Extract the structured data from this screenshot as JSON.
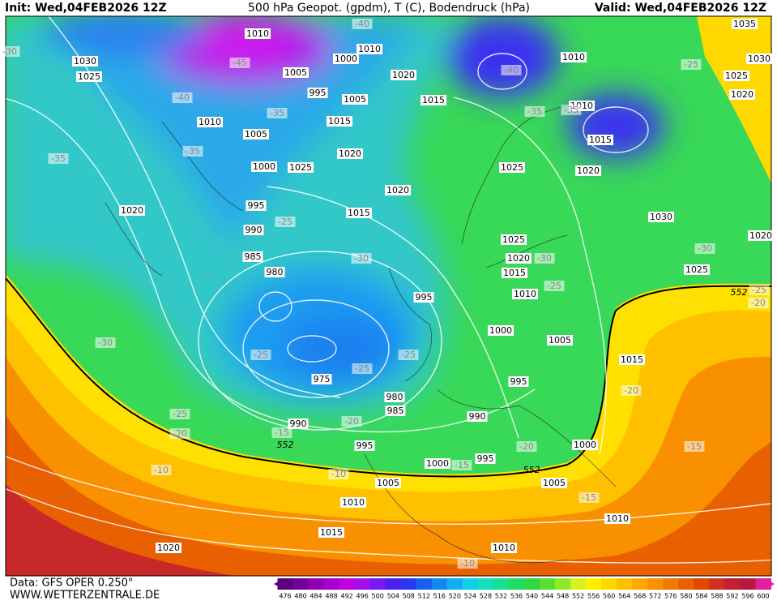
{
  "header": {
    "init": "Init: Wed,04FEB2026 12Z",
    "title": "500 hPa Geopot. (gpdm), T (C), Bodendruck (hPa)",
    "valid": "Valid: Wed,04FEB2026 12Z"
  },
  "footer": {
    "source": "Data: GFS OPER 0.250°",
    "site": "WWW.WETTERZENTRALE.DE"
  },
  "colorbar": {
    "labels": [
      476,
      480,
      484,
      488,
      492,
      496,
      500,
      504,
      508,
      512,
      516,
      520,
      524,
      528,
      532,
      536,
      540,
      544,
      548,
      552,
      556,
      560,
      564,
      568,
      572,
      576,
      580,
      584,
      588,
      592,
      596,
      600
    ],
    "colors": [
      "#5a0080",
      "#74009a",
      "#9000b4",
      "#a800cc",
      "#c000e0",
      "#a010ee",
      "#7a18f0",
      "#4c20f0",
      "#2a38f0",
      "#1a60f0",
      "#1288f0",
      "#10b0f0",
      "#10d0e8",
      "#10e0c0",
      "#18e090",
      "#20dc60",
      "#30d840",
      "#58e030",
      "#90e828",
      "#d8f020",
      "#fff000",
      "#ffd800",
      "#ffc000",
      "#ffa800",
      "#f89000",
      "#f07800",
      "#e86000",
      "#e04800",
      "#d03020",
      "#c02030",
      "#b81840",
      "#e020a0"
    ]
  },
  "map": {
    "isobar_labels": [
      1010,
      1010,
      1000,
      1030,
      1025,
      1005,
      995,
      1005,
      1020,
      1015,
      1010,
      1010,
      1015,
      1010,
      1005,
      1015,
      1020,
      1000,
      1025,
      1025,
      1020,
      1020,
      995,
      1015,
      1020,
      990,
      1030,
      1025,
      1020,
      985,
      980,
      1015,
      1010,
      995,
      1000,
      1005,
      1015,
      975,
      995,
      980,
      985,
      990,
      990,
      995,
      1000,
      1000,
      995,
      1005,
      1005,
      1010,
      1010,
      1015,
      1010,
      1020,
      1035,
      1030,
      1025,
      1020,
      1020,
      1025
    ],
    "temperature_labels": [
      -40,
      -45,
      -40,
      -35,
      -35,
      -35,
      -40,
      -35,
      -35,
      -25,
      -25,
      -30,
      -30,
      -25,
      -30,
      -25,
      -20,
      -25,
      -25,
      -25,
      -30,
      -25,
      -20,
      -15,
      -20,
      -20,
      -15,
      -20,
      -15,
      -10,
      -10,
      -15,
      -10,
      -30
    ],
    "geopotential_labels": [
      552,
      552,
      552
    ]
  }
}
